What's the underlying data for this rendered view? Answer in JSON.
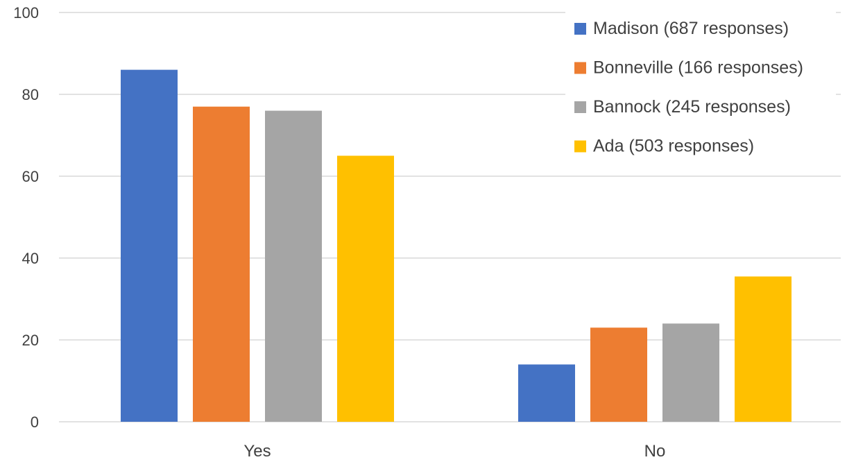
{
  "chart_data": {
    "type": "bar",
    "title": "",
    "xlabel": "",
    "ylabel": "",
    "categories": [
      "Yes",
      "No"
    ],
    "series": [
      {
        "name": "Madison (687 responses)",
        "color": "#4472c4",
        "values": [
          86,
          14
        ]
      },
      {
        "name": "Bonneville (166 responses)",
        "color": "#ed7d31",
        "values": [
          77,
          23
        ]
      },
      {
        "name": "Bannock (245 responses)",
        "color": "#a5a5a5",
        "values": [
          76,
          24
        ]
      },
      {
        "name": "Ada (503 responses)",
        "color": "#ffc000",
        "values": [
          65,
          35.5
        ]
      }
    ],
    "ylim": [
      0,
      100
    ],
    "yticks": [
      "0",
      "20",
      "40",
      "60",
      "80",
      "100"
    ],
    "grid": true,
    "legend_position": "top-right"
  }
}
